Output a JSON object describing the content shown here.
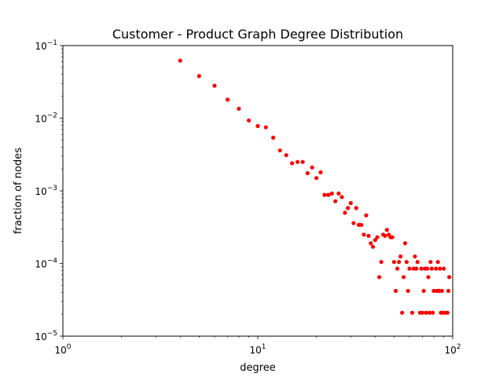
{
  "chart_data": {
    "type": "scatter",
    "title": "Customer - Product Graph Degree Distribution",
    "xlabel": "degree",
    "ylabel": "fraction of nodes",
    "xscale": "log",
    "yscale": "log",
    "xlim": [
      1,
      100
    ],
    "ylim": [
      1e-05,
      0.1
    ],
    "grid": false,
    "marker_color": "#ff0000",
    "x_ticks": [
      {
        "base": "10",
        "exp": "0"
      },
      {
        "base": "10",
        "exp": "1"
      },
      {
        "base": "10",
        "exp": "2"
      }
    ],
    "y_ticks": [
      {
        "base": "10",
        "exp": "−5"
      },
      {
        "base": "10",
        "exp": "−4"
      },
      {
        "base": "10",
        "exp": "−3"
      },
      {
        "base": "10",
        "exp": "−2"
      },
      {
        "base": "10",
        "exp": "−1"
      }
    ],
    "points": [
      [
        4,
        0.062
      ],
      [
        5,
        0.038
      ],
      [
        6,
        0.028
      ],
      [
        7,
        0.018
      ],
      [
        8,
        0.0135
      ],
      [
        9,
        0.0093
      ],
      [
        10,
        0.0078
      ],
      [
        11,
        0.0075
      ],
      [
        12,
        0.0054
      ],
      [
        13,
        0.0036
      ],
      [
        14,
        0.0031
      ],
      [
        15,
        0.0024
      ],
      [
        16,
        0.0025
      ],
      [
        17,
        0.0025
      ],
      [
        18,
        0.00175
      ],
      [
        19,
        0.0021
      ],
      [
        20,
        0.0015
      ],
      [
        21,
        0.0018
      ],
      [
        22,
        0.00088
      ],
      [
        23,
        0.00088
      ],
      [
        24,
        0.00092
      ],
      [
        25,
        0.00072
      ],
      [
        26,
        0.00092
      ],
      [
        27,
        0.00082
      ],
      [
        28,
        0.0005
      ],
      [
        29,
        0.00058
      ],
      [
        30,
        0.00068
      ],
      [
        31,
        0.00036
      ],
      [
        32,
        0.00058
      ],
      [
        33,
        0.00034
      ],
      [
        34,
        0.00034
      ],
      [
        35,
        0.00025
      ],
      [
        36,
        0.00046
      ],
      [
        37,
        0.00024
      ],
      [
        38,
        0.00019
      ],
      [
        39,
        0.00017
      ],
      [
        40,
        0.00021
      ],
      [
        41,
        0.00023
      ],
      [
        42,
        6.5e-05
      ],
      [
        43,
        0.000105
      ],
      [
        44,
        0.00025
      ],
      [
        45,
        0.00024
      ],
      [
        46,
        0.00029
      ],
      [
        47,
        0.00025
      ],
      [
        48,
        0.00023
      ],
      [
        49,
        0.00023
      ],
      [
        50,
        0.000105
      ],
      [
        51,
        4.2e-05
      ],
      [
        52,
        8.5e-05
      ],
      [
        53,
        0.000105
      ],
      [
        54,
        0.000125
      ],
      [
        55,
        2.1e-05
      ],
      [
        56,
        6.5e-05
      ],
      [
        57,
        0.00019
      ],
      [
        58,
        0.000105
      ],
      [
        59,
        4.2e-05
      ],
      [
        60,
        8.5e-05
      ],
      [
        62,
        2.1e-05
      ],
      [
        63,
        8.5e-05
      ],
      [
        64,
        0.000125
      ],
      [
        65,
        8.5e-05
      ],
      [
        66,
        0.000105
      ],
      [
        68,
        2.1e-05
      ],
      [
        69,
        8.5e-05
      ],
      [
        70,
        2.1e-05
      ],
      [
        71,
        4.2e-05
      ],
      [
        72,
        8.5e-05
      ],
      [
        73,
        2.1e-05
      ],
      [
        74,
        8.5e-05
      ],
      [
        75,
        6.5e-05
      ],
      [
        76,
        2.1e-05
      ],
      [
        77,
        0.000105
      ],
      [
        78,
        8.5e-05
      ],
      [
        79,
        2.1e-05
      ],
      [
        80,
        4.2e-05
      ],
      [
        82,
        8.5e-05
      ],
      [
        83,
        4.2e-05
      ],
      [
        84,
        0.000105
      ],
      [
        85,
        4.2e-05
      ],
      [
        86,
        8.5e-05
      ],
      [
        87,
        2.1e-05
      ],
      [
        88,
        4.2e-05
      ],
      [
        89,
        2.1e-05
      ],
      [
        90,
        8.5e-05
      ],
      [
        92,
        2.1e-05
      ],
      [
        94,
        2.1e-05
      ],
      [
        95,
        4.2e-05
      ],
      [
        96,
        6.5e-05
      ]
    ]
  }
}
